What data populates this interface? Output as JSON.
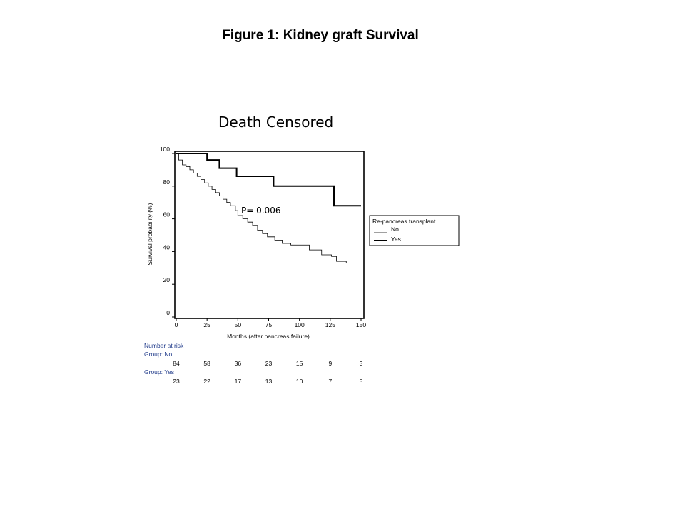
{
  "figure_title": "Figure 1: Kidney graft Survival",
  "chart_data": {
    "type": "line",
    "subtitle": "Death Censored",
    "xlabel": "Months (after pancreas failure)",
    "ylabel": "Survival probability (%)",
    "xlim": [
      0,
      150
    ],
    "ylim": [
      0,
      100
    ],
    "x_ticks": [
      0,
      25,
      50,
      75,
      100,
      125,
      150
    ],
    "y_ticks": [
      0,
      20,
      40,
      60,
      80,
      100
    ],
    "annotation": "P= 0.006",
    "legend": {
      "title": "Re-pancreas transplant",
      "position": "right",
      "entries": [
        "No",
        "Yes"
      ]
    },
    "series": [
      {
        "name": "No",
        "style": "thin",
        "points": [
          [
            0,
            100
          ],
          [
            2,
            96
          ],
          [
            5,
            93
          ],
          [
            8,
            92
          ],
          [
            11,
            90
          ],
          [
            14,
            88
          ],
          [
            17,
            86
          ],
          [
            20,
            84
          ],
          [
            23,
            82
          ],
          [
            26,
            80
          ],
          [
            29,
            78
          ],
          [
            32,
            76
          ],
          [
            35,
            74
          ],
          [
            38,
            72
          ],
          [
            41,
            70
          ],
          [
            44,
            68
          ],
          [
            48,
            65
          ],
          [
            50,
            62
          ],
          [
            54,
            60
          ],
          [
            58,
            58
          ],
          [
            62,
            56
          ],
          [
            66,
            53
          ],
          [
            70,
            51
          ],
          [
            74,
            49
          ],
          [
            80,
            47
          ],
          [
            86,
            45
          ],
          [
            93,
            44
          ],
          [
            105,
            44
          ],
          [
            108,
            41
          ],
          [
            118,
            38
          ],
          [
            126,
            37
          ],
          [
            130,
            34
          ],
          [
            138,
            33
          ],
          [
            146,
            33
          ]
        ]
      },
      {
        "name": "Yes",
        "style": "thick",
        "points": [
          [
            0,
            100
          ],
          [
            25,
            100
          ],
          [
            25,
            96
          ],
          [
            35,
            96
          ],
          [
            35,
            91
          ],
          [
            49,
            91
          ],
          [
            49,
            86
          ],
          [
            79,
            86
          ],
          [
            79,
            80
          ],
          [
            128,
            80
          ],
          [
            128,
            68
          ],
          [
            150,
            68
          ]
        ]
      }
    ],
    "number_at_risk": {
      "heading": "Number at risk",
      "groups": [
        {
          "label": "Group: No",
          "values": [
            84,
            58,
            36,
            23,
            15,
            9,
            3
          ]
        },
        {
          "label": "Group: Yes",
          "values": [
            23,
            22,
            17,
            13,
            10,
            7,
            5
          ]
        }
      ]
    }
  }
}
